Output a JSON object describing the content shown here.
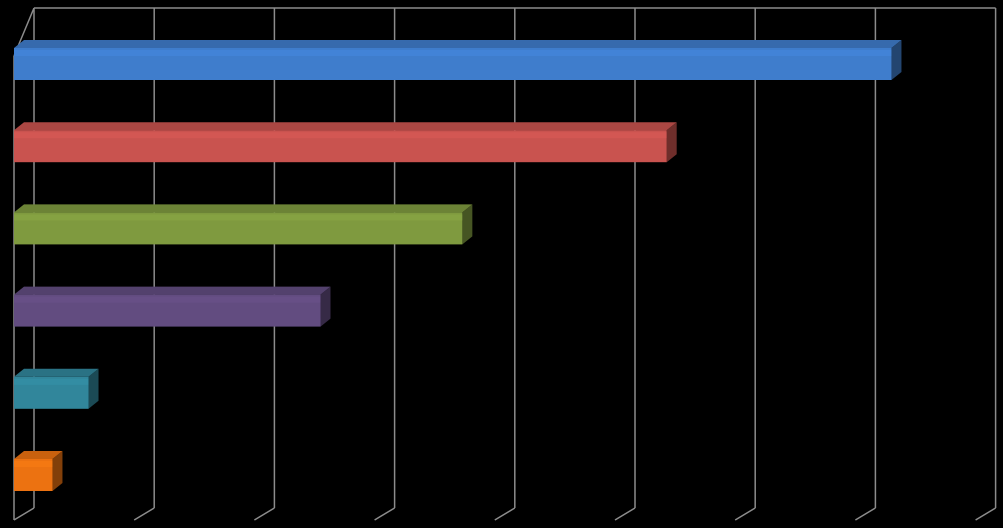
{
  "chart_data": {
    "type": "bar",
    "orientation": "horizontal",
    "style": "3d",
    "background": "#000000",
    "gridline_color": "#8c8c8c",
    "grid": true,
    "legend": "none",
    "title": "",
    "xlabel": "",
    "ylabel": "",
    "xlim": [
      0,
      8
    ],
    "x_gridline_step": 1,
    "categories": [
      "",
      "",
      "",
      "",
      "",
      ""
    ],
    "series": [
      {
        "values": [
          7.3,
          5.43,
          3.73,
          2.55,
          0.62,
          0.32
        ]
      }
    ],
    "bar_colors": [
      "#3f7dcc",
      "#c9534f",
      "#7f9a3f",
      "#624c80",
      "#31869b",
      "#ec7211"
    ]
  }
}
